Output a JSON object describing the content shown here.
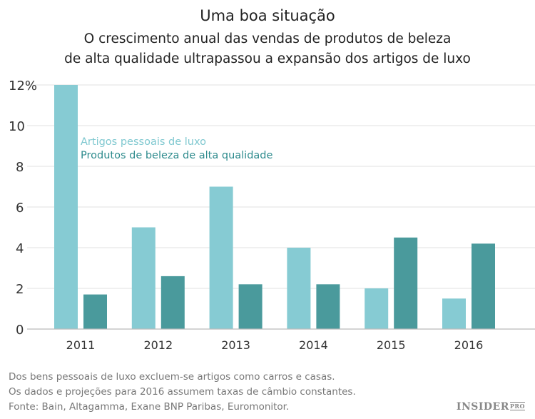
{
  "title": "Uma boa situação",
  "subtitle_lines": [
    "O crescimento anual das vendas de produtos de beleza",
    "de alta qualidade ultrapassou a expansão dos artigos de luxo"
  ],
  "chart_data": {
    "type": "bar",
    "categories": [
      "2011",
      "2012",
      "2013",
      "2014",
      "2015",
      "2016"
    ],
    "series": [
      {
        "name": "Artigos pessoais de luxo",
        "color": "#86cbd3",
        "values": [
          12.0,
          5.0,
          7.0,
          4.0,
          2.0,
          1.5
        ]
      },
      {
        "name": "Produtos de beleza de alta qualidade",
        "color": "#4a9a9c",
        "values": [
          1.7,
          2.6,
          2.2,
          2.2,
          4.5,
          4.2
        ]
      }
    ],
    "ylim": [
      0,
      12
    ],
    "yticks": [
      0,
      2,
      4,
      6,
      8,
      10,
      12
    ],
    "ytick_labels": [
      "0",
      "2",
      "4",
      "6",
      "8",
      "10",
      "12%"
    ],
    "grid": true,
    "legend_placement": "top-left",
    "legend_colors": [
      "#7fc8d0",
      "#2e8b8d"
    ]
  },
  "footnotes": [
    "Dos bens pessoais de luxo excluem-se artigos como carros e casas.",
    "Os dados e projeções para 2016 assumem taxas de câmbio constantes.",
    "Fonte: Bain, Altagamma, Exane BNP Paribas, Euromonitor."
  ],
  "logo": {
    "main": "INSIDER",
    "suffix": "PRO"
  }
}
